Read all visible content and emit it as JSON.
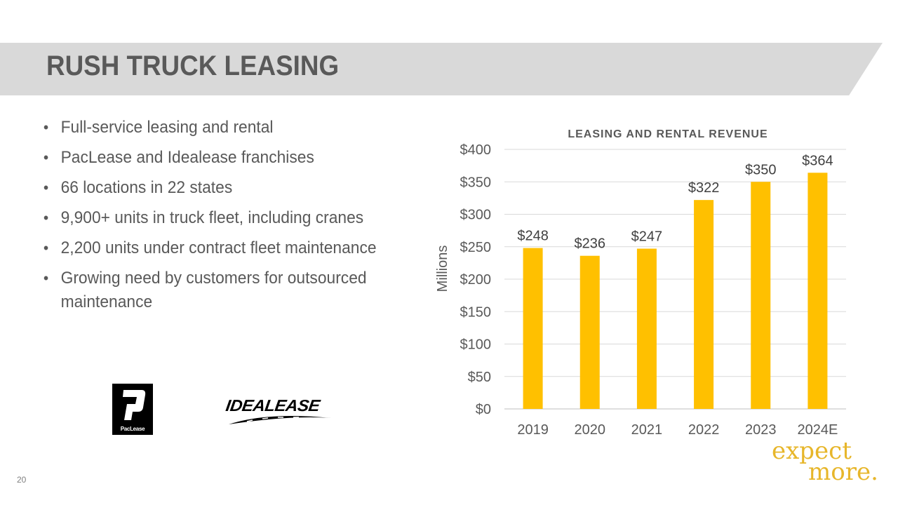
{
  "slide": {
    "title": "RUSH TRUCK LEASING",
    "page_number": "20"
  },
  "bullets": [
    "Full-service leasing and rental",
    "PacLease and Idealease franchises",
    "66 locations in 22 states",
    "9,900+ units in truck fleet, including cranes",
    "2,200 units under contract fleet maintenance",
    "Growing need by customers for outsourced maintenance"
  ],
  "bullet_glyph": "•",
  "logos": {
    "paclease_text": "PacLease",
    "idealease_text": "IDEALEASE"
  },
  "brand": {
    "tagline_line1": "expect",
    "tagline_line2": "more.",
    "accent_color": "#ffc000",
    "tagline_color": "#e7b62a"
  },
  "chart_data": {
    "type": "bar",
    "title": "LEASING AND RENTAL REVENUE",
    "xlabel": "",
    "ylabel": "Millions",
    "categories": [
      "2019",
      "2020",
      "2021",
      "2022",
      "2023",
      "2024E"
    ],
    "values": [
      248,
      236,
      247,
      322,
      350,
      364
    ],
    "data_labels": [
      "$248",
      "$236",
      "$247",
      "$322",
      "$350",
      "$364"
    ],
    "y_ticks": [
      0,
      50,
      100,
      150,
      200,
      250,
      300,
      350,
      400
    ],
    "y_tick_labels": [
      "$0",
      "$50",
      "$100",
      "$150",
      "$200",
      "$250",
      "$300",
      "$350",
      "$400"
    ],
    "ylim": [
      0,
      400
    ],
    "grid": true,
    "legend": "none",
    "bar_color": "#ffc000"
  }
}
